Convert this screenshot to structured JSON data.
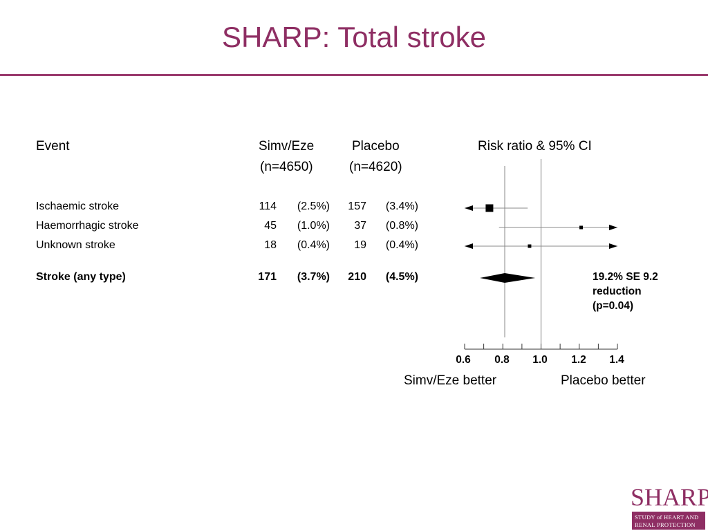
{
  "title": "SHARP: Total stroke",
  "headers": {
    "event": "Event",
    "group1_name": "Simv/Eze",
    "group1_n": "(n=4650)",
    "group2_name": "Placebo",
    "group2_n": "(n=4620)",
    "chart": "Risk ratio & 95% CI"
  },
  "rows": [
    {
      "label": "Ischaemic stroke",
      "g1_count": "114",
      "g1_pct": "(2.5%)",
      "g2_count": "157",
      "g2_pct": "(3.4%)",
      "bold": false
    },
    {
      "label": "Haemorrhagic stroke",
      "g1_count": "45",
      "g1_pct": "(1.0%)",
      "g2_count": "37",
      "g2_pct": "(0.8%)",
      "bold": false
    },
    {
      "label": "Unknown stroke",
      "g1_count": "18",
      "g1_pct": "(0.4%)",
      "g2_count": "19",
      "g2_pct": "(0.4%)",
      "bold": false
    },
    {
      "label": "Stroke (any type)",
      "g1_count": "171",
      "g1_pct": "(3.7%)",
      "g2_count": "210",
      "g2_pct": "(4.5%)",
      "bold": true
    }
  ],
  "result_note": [
    "19.2% SE 9.2",
    "reduction",
    "(p=0.04)"
  ],
  "direction_labels": {
    "left": "Simv/Eze better",
    "right": "Placebo better"
  },
  "logo": {
    "word": "SHARP",
    "line1": "STUDY of HEART AND",
    "line2": "RENAL PROTECTION"
  },
  "colors": {
    "title": "#8e2e63",
    "rule": "#9a3b6e"
  },
  "chart_data": {
    "type": "forest",
    "xlim": [
      0.6,
      1.4
    ],
    "xticks": [
      "0.6",
      "0.8",
      "1.0",
      "1.2",
      "1.4"
    ],
    "reference_line": 1.0,
    "overall_line": 0.81,
    "estimates": [
      {
        "name": "Ischaemic stroke",
        "rr": 0.73,
        "lo": 0.6,
        "hi": 0.93,
        "lo_arrow": true,
        "hi_arrow": false,
        "marker": "square",
        "size": "large"
      },
      {
        "name": "Haemorrhagic stroke",
        "rr": 1.21,
        "lo": 0.78,
        "hi": 1.4,
        "lo_arrow": false,
        "hi_arrow": true,
        "marker": "square",
        "size": "small"
      },
      {
        "name": "Unknown stroke",
        "rr": 0.94,
        "lo": 0.6,
        "hi": 1.4,
        "lo_arrow": true,
        "hi_arrow": true,
        "marker": "square",
        "size": "small"
      },
      {
        "name": "Stroke (any type)",
        "rr": 0.81,
        "lo": 0.68,
        "hi": 0.97,
        "lo_arrow": false,
        "hi_arrow": false,
        "marker": "diamond",
        "size": "large"
      }
    ]
  }
}
